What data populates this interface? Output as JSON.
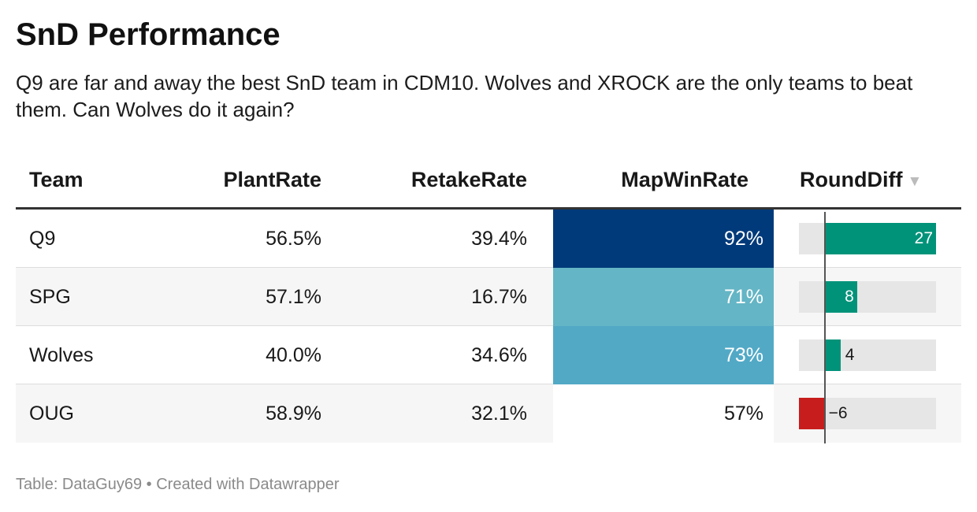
{
  "header": {
    "title": "SnD Performance",
    "description": "Q9 are far and away the best SnD team in CDM10. Wolves and XROCK are the only teams to beat them. Can Wolves do it again?"
  },
  "columns": {
    "team": "Team",
    "plant": "PlantRate",
    "retake": "RetakeRate",
    "map": "MapWinRate",
    "diff": "RoundDiff",
    "sort_icon": "sort-descending-icon"
  },
  "rows": [
    {
      "team": "Q9",
      "plant": "56.5%",
      "retake": "39.4%",
      "map": "92%",
      "diff": "27"
    },
    {
      "team": "SPG",
      "plant": "57.1%",
      "retake": "16.7%",
      "map": "71%",
      "diff": "8"
    },
    {
      "team": "Wolves",
      "plant": "40.0%",
      "retake": "34.6%",
      "map": "73%",
      "diff": "4"
    },
    {
      "team": "OUG",
      "plant": "58.9%",
      "retake": "32.1%",
      "map": "57%",
      "diff": "-6"
    }
  ],
  "footer": {
    "text": "Table: DataGuy69 • Created with Datawrapper"
  },
  "chart_data": {
    "type": "table",
    "columns": [
      "Team",
      "PlantRate",
      "RetakeRate",
      "MapWinRate",
      "RoundDiff"
    ],
    "rows": [
      [
        "Q9",
        56.5,
        39.4,
        92,
        27
      ],
      [
        "SPG",
        57.1,
        16.7,
        71,
        8
      ],
      [
        "Wolves",
        40.0,
        34.6,
        73,
        4
      ],
      [
        "OUG",
        58.9,
        32.1,
        57,
        -6
      ]
    ],
    "sorted_by": "RoundDiff",
    "sort_order": "descending",
    "rounddiff_range": [
      -6,
      27
    ],
    "colors": {
      "positive": "#00937a",
      "negative": "#c71e1d",
      "map_q9": "#003a7a",
      "map_spg": "#64b5c5",
      "map_wolves": "#52a9c6",
      "bar_background": "#e6e6e6"
    }
  }
}
